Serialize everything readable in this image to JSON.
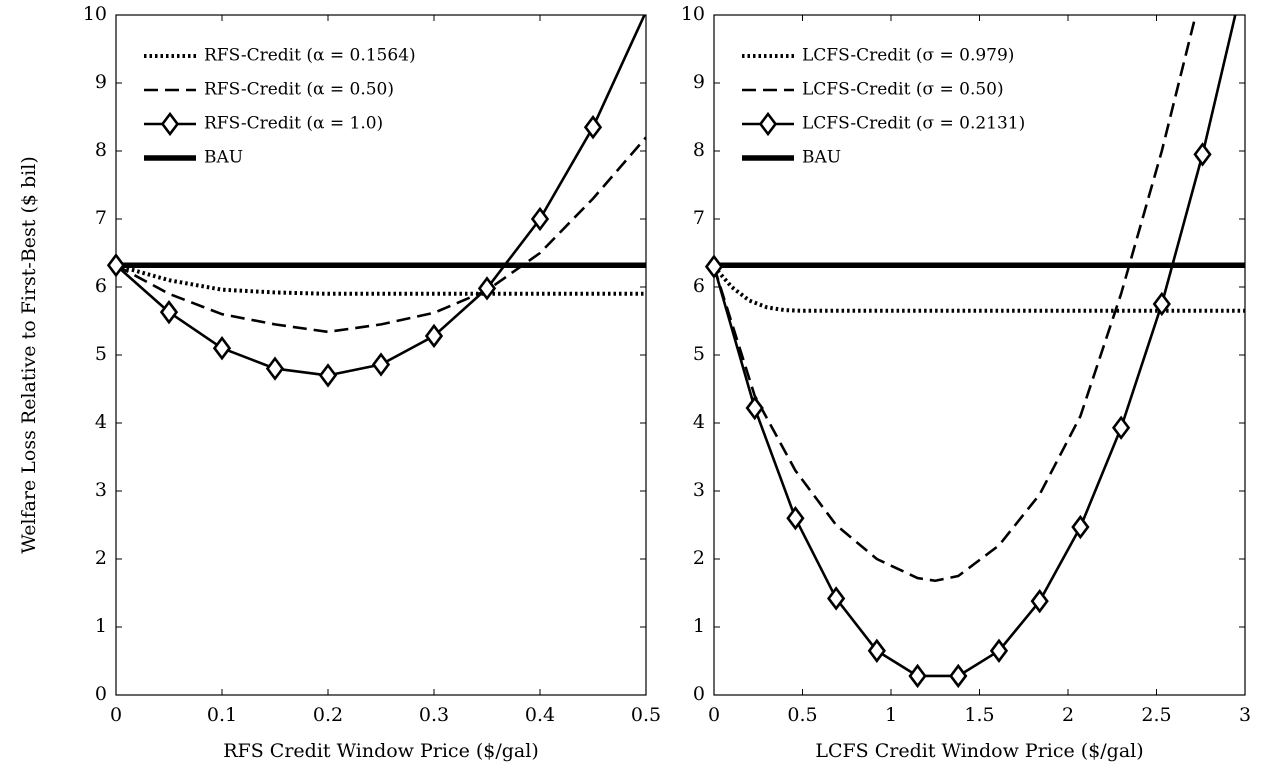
{
  "chart_data": [
    {
      "type": "line",
      "title": "",
      "xlabel": "RFS Credit Window Price ($/gal)",
      "ylabel": "Welfare Loss Relative to First-Best ($ bil)",
      "xlim": [
        0,
        0.5
      ],
      "ylim": [
        0,
        10
      ],
      "xticks": [
        "0",
        "0.1",
        "0.2",
        "0.3",
        "0.4",
        "0.5"
      ],
      "yticks": [
        "0",
        "1",
        "2",
        "3",
        "4",
        "5",
        "6",
        "7",
        "8",
        "9",
        "10"
      ],
      "grid": false,
      "legend_position": "top-left",
      "series": [
        {
          "name": "RFS-Credit (α = 0.1564)",
          "style": "dotted",
          "marker": "none",
          "x": [
            0,
            0.05,
            0.1,
            0.15,
            0.2,
            0.25,
            0.3,
            0.35,
            0.4,
            0.45,
            0.5
          ],
          "y": [
            6.32,
            6.1,
            5.96,
            5.92,
            5.9,
            5.9,
            5.9,
            5.9,
            5.9,
            5.9,
            5.9
          ]
        },
        {
          "name": "RFS-Credit (α = 0.50)",
          "style": "dashed",
          "marker": "none",
          "x": [
            0,
            0.05,
            0.1,
            0.15,
            0.2,
            0.25,
            0.3,
            0.35,
            0.4,
            0.45,
            0.5
          ],
          "y": [
            6.32,
            5.9,
            5.6,
            5.45,
            5.34,
            5.45,
            5.62,
            5.95,
            6.5,
            7.3,
            8.2
          ]
        },
        {
          "name": "RFS-Credit (α = 1.0)",
          "style": "solid",
          "marker": "diamond",
          "x": [
            0,
            0.05,
            0.1,
            0.15,
            0.2,
            0.25,
            0.3,
            0.35,
            0.4,
            0.45,
            0.5
          ],
          "y": [
            6.32,
            5.63,
            5.1,
            4.8,
            4.7,
            4.86,
            5.28,
            5.98,
            7.0,
            8.35,
            10.05
          ]
        },
        {
          "name": "BAU",
          "style": "thick",
          "marker": "none",
          "x": [
            0,
            0.5
          ],
          "y": [
            6.32,
            6.32
          ]
        }
      ]
    },
    {
      "type": "line",
      "title": "",
      "xlabel": "LCFS Credit Window Price ($/gal)",
      "ylabel": "",
      "xlim": [
        0,
        3
      ],
      "ylim": [
        0,
        10
      ],
      "xticks": [
        "0",
        "0.5",
        "1",
        "1.5",
        "2",
        "2.5",
        "3"
      ],
      "yticks": [
        "0",
        "1",
        "2",
        "3",
        "4",
        "5",
        "6",
        "7",
        "8",
        "9",
        "10"
      ],
      "grid": false,
      "legend_position": "top-left",
      "series": [
        {
          "name": "LCFS-Credit (σ = 0.979)",
          "style": "dotted",
          "marker": "none",
          "x": [
            0,
            0.1,
            0.2,
            0.3,
            0.4,
            0.5,
            0.7,
            1,
            1.5,
            2,
            2.5,
            3
          ],
          "y": [
            6.3,
            6.0,
            5.8,
            5.7,
            5.66,
            5.65,
            5.65,
            5.65,
            5.65,
            5.65,
            5.65,
            5.65
          ]
        },
        {
          "name": "LCFS-Credit (σ = 0.50)",
          "style": "dashed",
          "marker": "none",
          "x": [
            0,
            0.23,
            0.46,
            0.69,
            0.92,
            1.15,
            1.25,
            1.38,
            1.61,
            1.84,
            2.07,
            2.3,
            2.53,
            2.76
          ],
          "y": [
            6.3,
            4.4,
            3.3,
            2.5,
            2.0,
            1.72,
            1.68,
            1.75,
            2.2,
            2.95,
            4.1,
            5.9,
            8.0,
            10.4
          ]
        },
        {
          "name": "LCFS-Credit (σ = 0.2131)",
          "style": "solid",
          "marker": "diamond",
          "x": [
            0,
            0.23,
            0.46,
            0.69,
            0.92,
            1.15,
            1.38,
            1.61,
            1.84,
            2.07,
            2.3,
            2.53,
            2.76,
            2.99
          ],
          "y": [
            6.3,
            4.22,
            2.6,
            1.42,
            0.65,
            0.28,
            0.28,
            0.65,
            1.38,
            2.47,
            3.93,
            5.75,
            7.95,
            10.5
          ]
        },
        {
          "name": "BAU",
          "style": "thick",
          "marker": "none",
          "x": [
            0,
            3
          ],
          "y": [
            6.32,
            6.32
          ]
        }
      ]
    }
  ]
}
